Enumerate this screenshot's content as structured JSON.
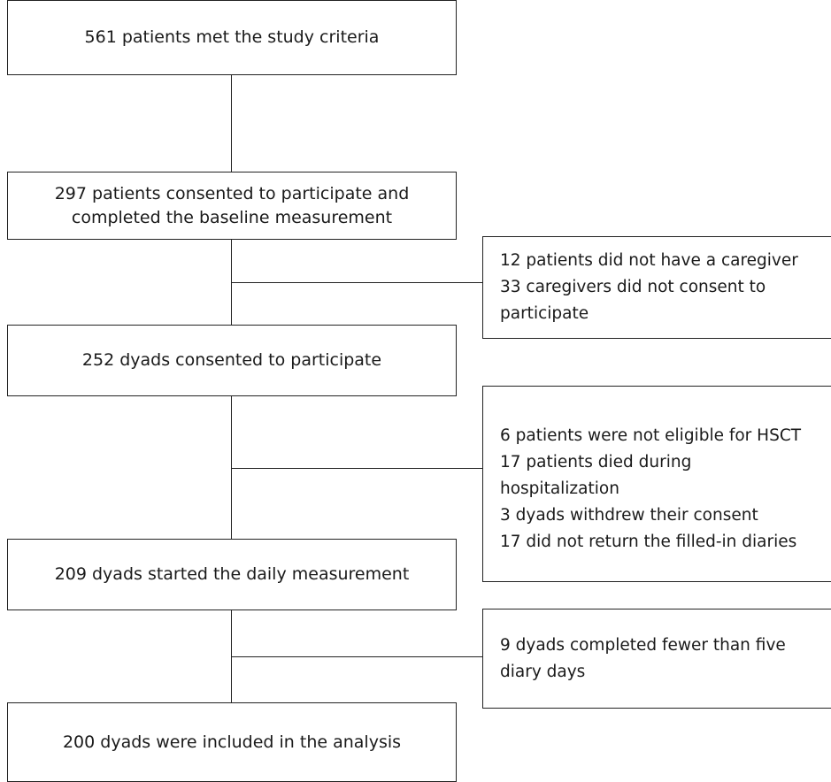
{
  "flowchart": {
    "steps": [
      {
        "text": "561 patients met the study criteria"
      },
      {
        "text": "297 patients consented to participate and completed the baseline measurement"
      },
      {
        "text": "252 dyads consented to participate"
      },
      {
        "text": "209 dyads started the daily measurement"
      },
      {
        "text": "200 dyads were included in the analysis"
      }
    ],
    "exclusions": [
      {
        "lines": [
          "12 patients did not have a caregiver",
          "33 caregivers did not consent to",
          "participate"
        ]
      },
      {
        "lines": [
          "6 patients were not eligible for HSCT",
          "17 patients died during",
          "hospitalization",
          "3 dyads withdrew their consent",
          "17 did not return the filled-in diaries"
        ]
      },
      {
        "lines": [
          "9 dyads completed fewer than five",
          "diary days"
        ]
      }
    ]
  }
}
